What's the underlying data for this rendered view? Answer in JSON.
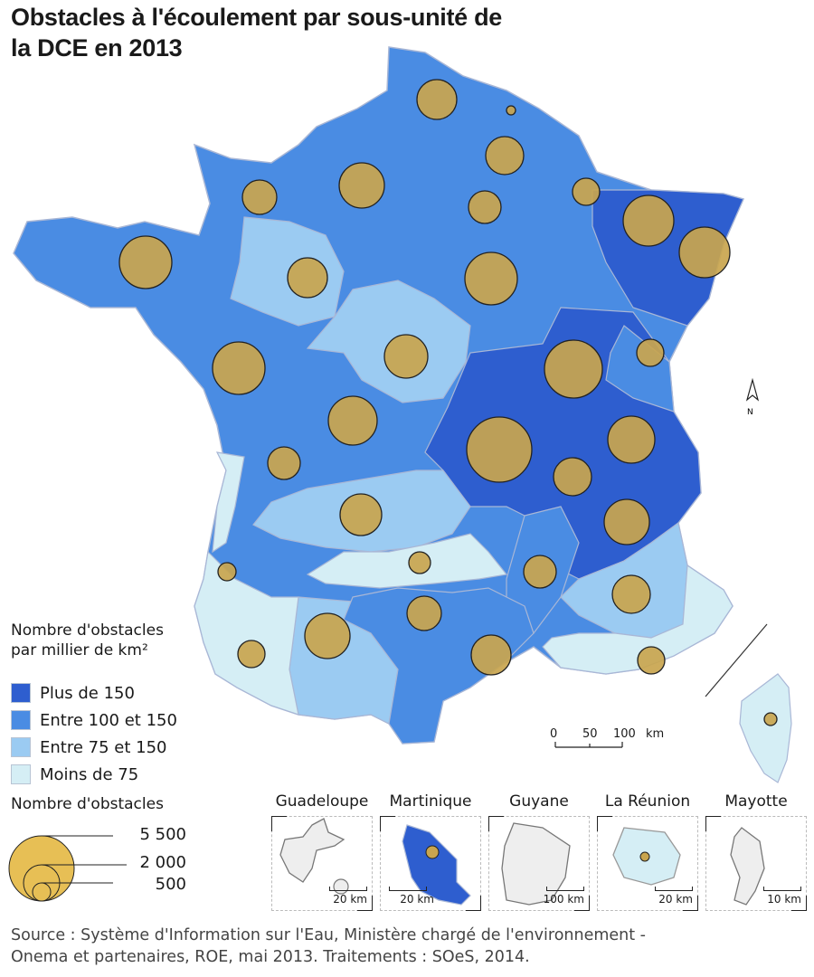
{
  "title": "Obstacles à l'écoulement par sous-unité de la DCE en 2013",
  "colors": {
    "plus_150": "#2e5ecf",
    "entre_100_150": "#4a8ce3",
    "entre_75_150": "#9bcbf2",
    "moins_75": "#d5eef5",
    "circle_fill": "#c9a54e",
    "circle_fill_light": "#e7bf55",
    "border": "#a9b7d6"
  },
  "legend_density": {
    "title_line1": "Nombre d'obstacles",
    "title_line2": "par millier de km²",
    "items": [
      {
        "label": "Plus de 150",
        "color": "#2e5ecf"
      },
      {
        "label": "Entre 100 et 150",
        "color": "#4a8ce3"
      },
      {
        "label": "Entre 75 et 150",
        "color": "#9bcbf2"
      },
      {
        "label": "Moins de 75",
        "color": "#d5eef5"
      }
    ]
  },
  "legend_circles": {
    "title": "Nombre d'obstacles",
    "values": [
      "5 500",
      "2 000",
      "500"
    ]
  },
  "scale": {
    "ticks": [
      "0",
      "50",
      "100"
    ],
    "unit": "km"
  },
  "north_label": "N",
  "insets": [
    {
      "name": "Guadeloupe",
      "scale": "20 km"
    },
    {
      "name": "Martinique",
      "scale": "20 km"
    },
    {
      "name": "Guyane",
      "scale": "100 km"
    },
    {
      "name": "La Réunion",
      "scale": "20 km"
    },
    {
      "name": "Mayotte",
      "scale": "10 km"
    }
  ],
  "source_line1": "Source : Système d'Information sur l'Eau, Ministère chargé de l'environnement -",
  "source_line2": "Onema et partenaires, ROE, mai 2013. Traitements : SOeS, 2014."
}
